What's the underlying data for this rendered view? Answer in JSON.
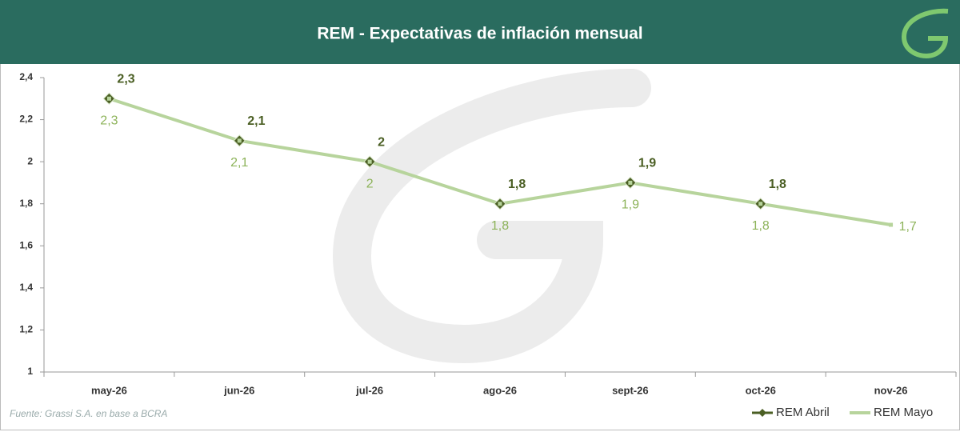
{
  "chart_data": {
    "type": "line",
    "title": "REM - Expectativas de inflación mensual",
    "source": "Fuente: Grassi S.A. en base a BCRA",
    "categories": [
      "may-26",
      "jun-26",
      "jul-26",
      "ago-26",
      "sept-26",
      "oct-26",
      "nov-26"
    ],
    "series": [
      {
        "name": "REM Abril",
        "color": "#4b5f24",
        "marker": "diamond",
        "values": [
          2.3,
          2.1,
          2,
          1.8,
          1.9,
          1.8,
          null
        ],
        "value_labels": [
          "2,3",
          "2,1",
          "2",
          "1,8",
          "1,9",
          "1,8",
          null
        ]
      },
      {
        "name": "REM Mayo",
        "color": "#b7d49c",
        "label_color": "#8db35a",
        "marker": "square",
        "values": [
          2.3,
          2.1,
          2,
          1.8,
          1.9,
          1.8,
          1.7
        ],
        "value_labels": [
          "2,3",
          "2,1",
          "2",
          "1,8",
          "1,9",
          "1,8",
          "1,7"
        ]
      }
    ],
    "ylim": [
      1,
      2.4
    ],
    "yticks": [
      1,
      {
        "value": 1.2,
        "label": "1,2"
      },
      {
        "value": 1.4,
        "label": "1,4"
      },
      {
        "value": 1.6,
        "label": "1,6"
      },
      {
        "value": 1.8,
        "label": "1,8"
      },
      2,
      {
        "value": 2.2,
        "label": "2,2"
      },
      {
        "value": 2.4,
        "label": "2,4"
      }
    ],
    "legend": "bottom-right"
  }
}
